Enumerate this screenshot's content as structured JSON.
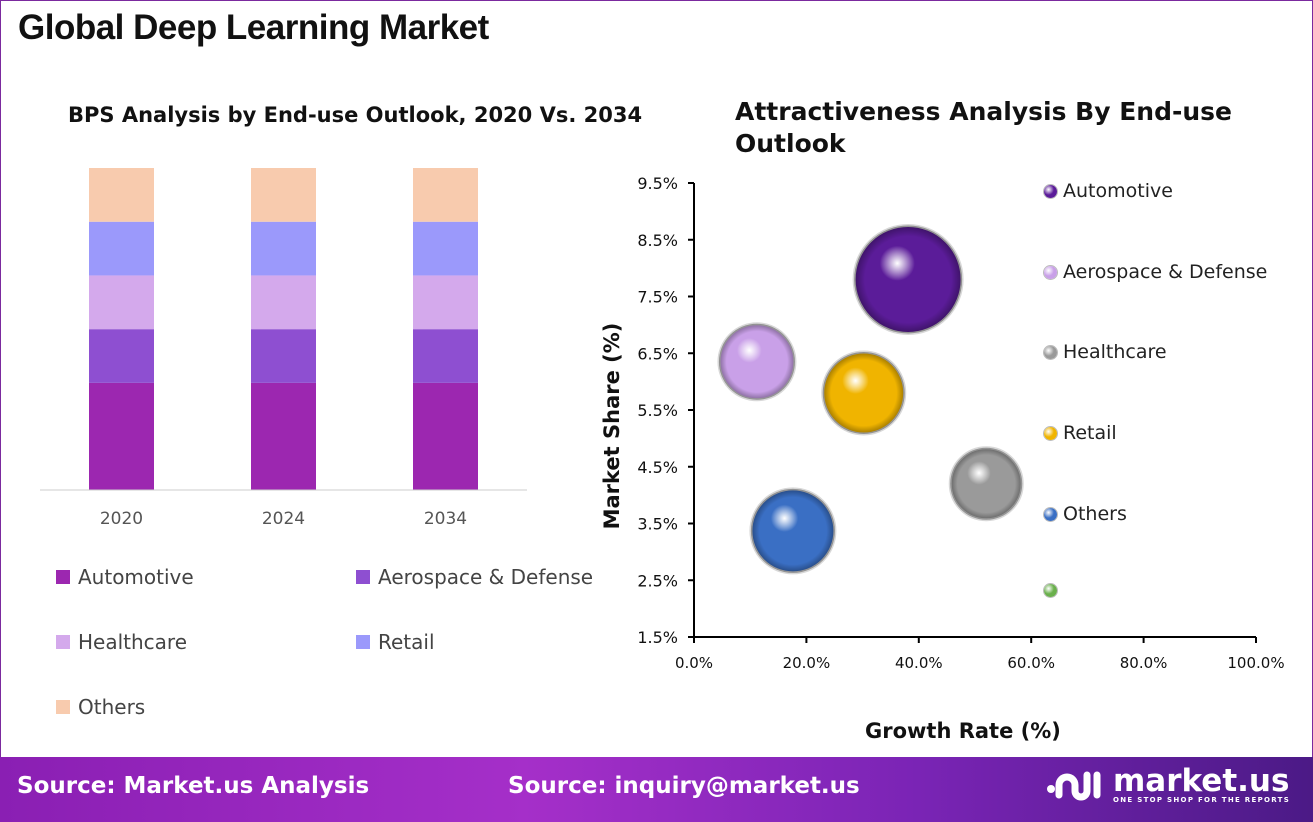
{
  "title": "Global Deep Learning Market",
  "footer": {
    "source_left": "Source: Market.us Analysis",
    "source_right": "Source: inquiry@market.us",
    "logo_name": "market.us",
    "logo_tagline": "ONE STOP SHOP FOR THE REPORTS"
  },
  "chart_data": [
    {
      "type": "bar",
      "stacked": true,
      "title": "BPS Analysis by End-use Outlook, 2020 Vs. 2034",
      "categories": [
        "2020",
        "2024",
        "2034"
      ],
      "series": [
        {
          "name": "Automotive",
          "color": "#9c27b0",
          "values": [
            33.3,
            33.3,
            33.3
          ]
        },
        {
          "name": "Aerospace & Defense",
          "color": "#8e4fd1",
          "values": [
            16.7,
            16.7,
            16.7
          ]
        },
        {
          "name": "Healthcare",
          "color": "#d4a9ec",
          "values": [
            16.7,
            16.7,
            16.7
          ]
        },
        {
          "name": "Retail",
          "color": "#9b99fb",
          "values": [
            16.7,
            16.7,
            16.7
          ]
        },
        {
          "name": "Others",
          "color": "#f8cbae",
          "values": [
            16.7,
            16.7,
            16.7
          ]
        }
      ],
      "legend": "bottom",
      "grid": false
    },
    {
      "type": "scatter",
      "bubble": true,
      "title": "Attractiveness Analysis By End-use Outlook",
      "xlabel": "Growth Rate (%)",
      "ylabel": "Market Share (%)",
      "xlim": [
        0,
        100
      ],
      "ylim": [
        1.5,
        9.5
      ],
      "xticks": [
        "0.0%",
        "20.0%",
        "40.0%",
        "60.0%",
        "80.0%",
        "100.0%"
      ],
      "yticks": [
        "1.5%",
        "2.5%",
        "3.5%",
        "4.5%",
        "5.5%",
        "6.5%",
        "7.5%",
        "8.5%",
        "9.5%"
      ],
      "series": [
        {
          "name": "Automotive",
          "color": "#5b1c99",
          "x": 38.1,
          "y": 7.8,
          "size": 54
        },
        {
          "name": "Aerospace & Defense",
          "color": "#c9a0e8",
          "x": 11.2,
          "y": 6.35,
          "size": 38
        },
        {
          "name": "Healthcare",
          "color": "#9a9a9a",
          "x": 52.0,
          "y": 4.2,
          "size": 36
        },
        {
          "name": "Retail",
          "color": "#f0b400",
          "x": 30.2,
          "y": 5.8,
          "size": 41
        },
        {
          "name": "Others",
          "color": "#3a6fc4",
          "x": 17.6,
          "y": 3.37,
          "size": 42
        },
        {
          "name": "",
          "color": "#6ab04c"
        }
      ],
      "legend": "right",
      "grid": false
    }
  ]
}
